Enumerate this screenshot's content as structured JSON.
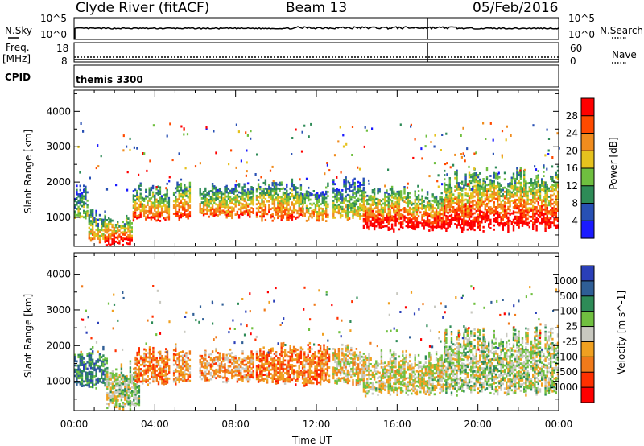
{
  "header": {
    "station": "Clyde River (fitACF)",
    "beam": "Beam 13",
    "date": "05/Feb/2016"
  },
  "top_panels": {
    "nsky_label": "N.Sky",
    "nsky_ticks": [
      "10^5",
      "10^0"
    ],
    "nsearch_label": "N.Search",
    "nsearch_ticks": [
      "10^5",
      "10^0"
    ],
    "freq_label": "Freq.",
    "freq_unit": "[MHz]",
    "freq_ticks": [
      "18",
      "8"
    ],
    "nave_label": "Nave",
    "nave_ticks": [
      "60",
      "0"
    ],
    "cpid_label": "CPID",
    "cpid_value": "themis 3300"
  },
  "chart_data": [
    {
      "type": "heatmap",
      "name": "power",
      "ylabel": "Slant Range [km]",
      "xlabel": "Time UT",
      "x_ticks": [
        "00:00",
        "04:00",
        "08:00",
        "12:00",
        "16:00",
        "20:00",
        "00:00"
      ],
      "x_range_hours": [
        0,
        24
      ],
      "y_ticks": [
        "1000",
        "2000",
        "3000",
        "4000"
      ],
      "ylim": [
        180,
        4600
      ],
      "colorbar_label": "Power [dB]",
      "colorbar_ticks": [
        "4",
        "8",
        "12",
        "16",
        "20",
        "24",
        "28"
      ],
      "colorbar_colors": [
        "#1a1aff",
        "#2850b4",
        "#2e8b57",
        "#6fbf3f",
        "#e6c21e",
        "#f08c1e",
        "#ff4a00",
        "#ff0000"
      ],
      "scatter_regions": [
        {
          "x": [
            0.0,
            0.7
          ],
          "y": [
            900,
            2000
          ],
          "level": 0.4
        },
        {
          "x": [
            0.7,
            1.5
          ],
          "y": [
            300,
            1300
          ],
          "level": 0.6
        },
        {
          "x": [
            1.5,
            2.9
          ],
          "y": [
            200,
            1100
          ],
          "level": 0.85
        },
        {
          "x": [
            2.9,
            4.7
          ],
          "y": [
            900,
            2000
          ],
          "level": 0.7
        },
        {
          "x": [
            4.9,
            5.7
          ],
          "y": [
            900,
            2100
          ],
          "level": 0.75
        },
        {
          "x": [
            6.2,
            8.9
          ],
          "y": [
            1000,
            2000
          ],
          "level": 0.65
        },
        {
          "x": [
            9.0,
            11.3
          ],
          "y": [
            900,
            2100
          ],
          "level": 0.7
        },
        {
          "x": [
            11.3,
            12.6
          ],
          "y": [
            900,
            2000
          ],
          "level": 0.6
        },
        {
          "x": [
            12.8,
            14.3
          ],
          "y": [
            900,
            2200
          ],
          "level": 0.5
        },
        {
          "x": [
            14.3,
            18.3
          ],
          "y": [
            600,
            1900
          ],
          "level": 0.85
        },
        {
          "x": [
            18.3,
            24.0
          ],
          "y": [
            600,
            2500
          ],
          "level": 0.85
        }
      ]
    },
    {
      "type": "heatmap",
      "name": "velocity",
      "ylabel": "Slant Range [km]",
      "xlabel": "Time UT",
      "x_ticks": [
        "00:00",
        "04:00",
        "08:00",
        "12:00",
        "16:00",
        "20:00",
        "00:00"
      ],
      "x_range_hours": [
        0,
        24
      ],
      "y_ticks": [
        "1000",
        "2000",
        "3000",
        "4000"
      ],
      "ylim": [
        180,
        4600
      ],
      "colorbar_label": "Velocity [m s^-1]",
      "colorbar_ticks": [
        "1000",
        "500",
        "100",
        "25",
        "-25",
        "-100",
        "-500",
        "-1000"
      ],
      "colorbar_colors": [
        "#2a3fb8",
        "#2f5e96",
        "#2e8b57",
        "#70c040",
        "#c8c8c0",
        "#f0a020",
        "#f07a1a",
        "#ff3000",
        "#ff0000"
      ],
      "scatter_regions": [
        {
          "x": [
            0.0,
            1.6
          ],
          "y": [
            800,
            2000
          ],
          "level": 0.25
        },
        {
          "x": [
            1.6,
            3.2
          ],
          "y": [
            200,
            1600
          ],
          "level": 0.45
        },
        {
          "x": [
            3.0,
            4.7
          ],
          "y": [
            900,
            2000
          ],
          "level": 0.7
        },
        {
          "x": [
            4.9,
            5.7
          ],
          "y": [
            900,
            2100
          ],
          "level": 0.65
        },
        {
          "x": [
            6.2,
            8.9
          ],
          "y": [
            1000,
            2000
          ],
          "level": 0.65
        },
        {
          "x": [
            9.0,
            12.6
          ],
          "y": [
            900,
            2100
          ],
          "level": 0.72
        },
        {
          "x": [
            12.8,
            14.3
          ],
          "y": [
            900,
            2100
          ],
          "level": 0.55
        },
        {
          "x": [
            14.3,
            18.3
          ],
          "y": [
            600,
            1900
          ],
          "level": 0.5
        },
        {
          "x": [
            18.3,
            24.0
          ],
          "y": [
            600,
            2600
          ],
          "level": 0.45
        }
      ]
    }
  ]
}
